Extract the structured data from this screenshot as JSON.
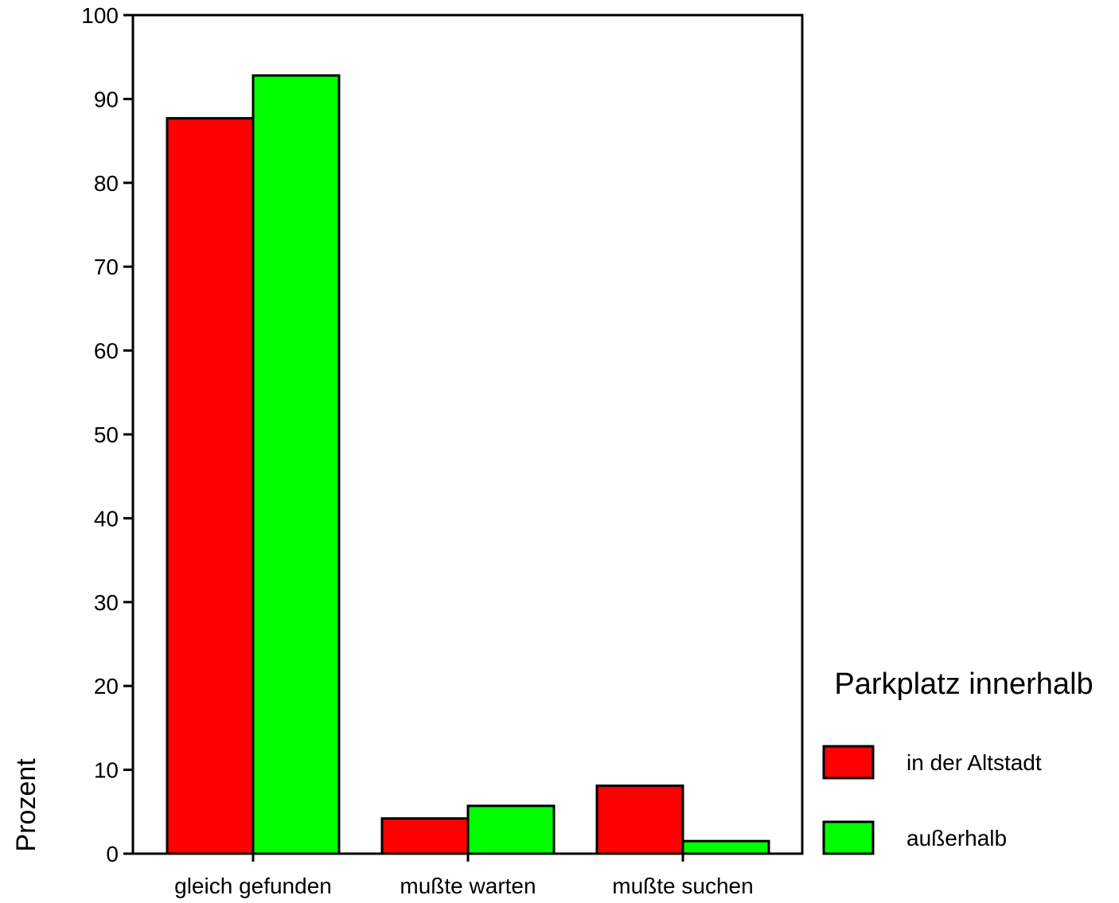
{
  "chart_data": {
    "type": "bar",
    "title": "",
    "xlabel": "",
    "ylabel": "Prozent",
    "ylim": [
      0,
      100
    ],
    "yticks": [
      "0",
      "10",
      "20",
      "30",
      "40",
      "50",
      "60",
      "70",
      "80",
      "90",
      "100"
    ],
    "categories": [
      "gleich gefunden",
      "mußte warten",
      "mußte suchen"
    ],
    "series": [
      {
        "name": "in der Altstadt",
        "color": "#ff0000",
        "values": [
          87.7,
          4.2,
          8.1
        ]
      },
      {
        "name": "außerhalb",
        "color": "#00ff00",
        "values": [
          92.8,
          5.7,
          1.5
        ]
      }
    ],
    "legend": {
      "title": "Parkplatz innerhalb",
      "position": "right"
    },
    "grid": false
  }
}
